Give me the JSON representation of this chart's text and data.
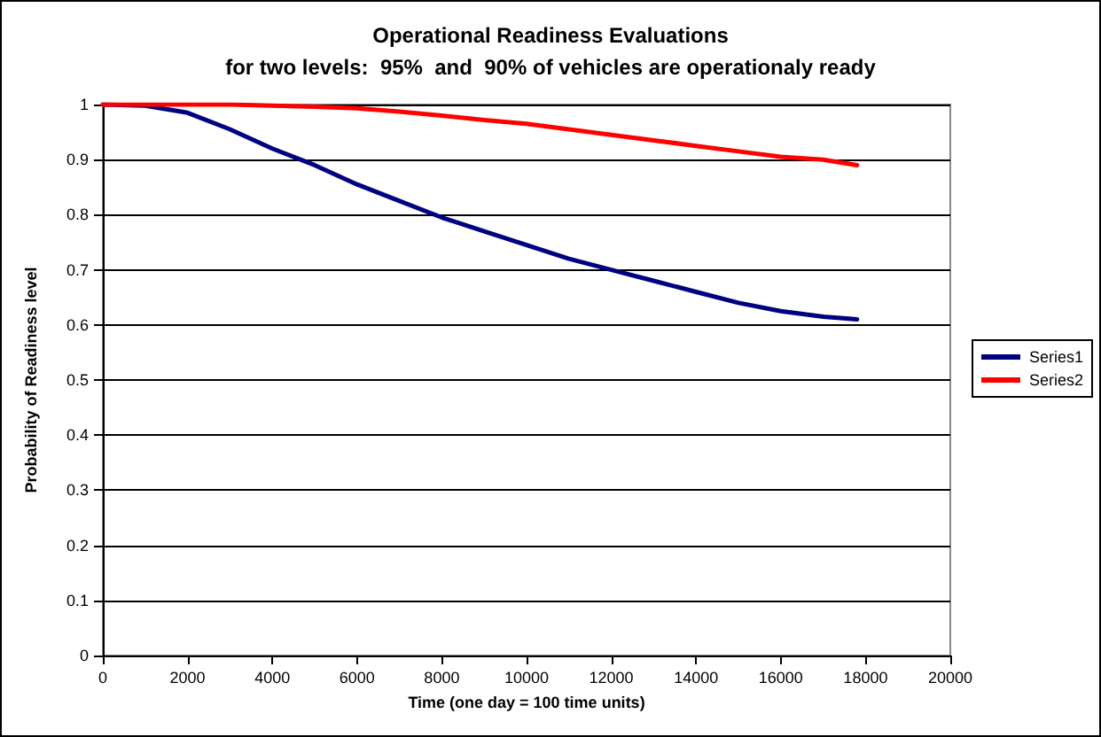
{
  "chart_data": {
    "type": "line",
    "title": "Operational Readiness Evaluations",
    "subtitle": "for two levels:  95%  and  90% of vehicles are operationaly ready",
    "xlabel": "Time (one day = 100 time units)",
    "ylabel": "Probability of Readiness level",
    "x": [
      0,
      1000,
      2000,
      3000,
      4000,
      5000,
      6000,
      7000,
      8000,
      9000,
      10000,
      11000,
      12000,
      13000,
      14000,
      15000,
      16000,
      17000,
      17800
    ],
    "series": [
      {
        "name": "Series1",
        "color": "#000080",
        "values": [
          1,
          0.998,
          0.985,
          0.955,
          0.92,
          0.89,
          0.855,
          0.825,
          0.795,
          0.77,
          0.745,
          0.72,
          0.7,
          0.68,
          0.66,
          0.64,
          0.625,
          0.615,
          0.61
        ]
      },
      {
        "name": "Series2",
        "color": "#ff0000",
        "values": [
          1,
          1,
          1,
          1,
          0.998,
          0.996,
          0.993,
          0.987,
          0.98,
          0.972,
          0.965,
          0.955,
          0.945,
          0.935,
          0.925,
          0.915,
          0.905,
          0.9,
          0.89
        ]
      }
    ],
    "xlim": [
      0,
      20000
    ],
    "xticks": [
      0,
      2000,
      4000,
      6000,
      8000,
      10000,
      12000,
      14000,
      16000,
      18000,
      20000
    ],
    "ylim": [
      0,
      1
    ],
    "yticks": [
      0,
      0.1,
      0.2,
      0.3,
      0.4,
      0.5,
      0.6,
      0.7,
      0.8,
      0.9,
      1
    ],
    "grid": "y",
    "legend": "right",
    "marker": "none",
    "line_style": "solid"
  }
}
